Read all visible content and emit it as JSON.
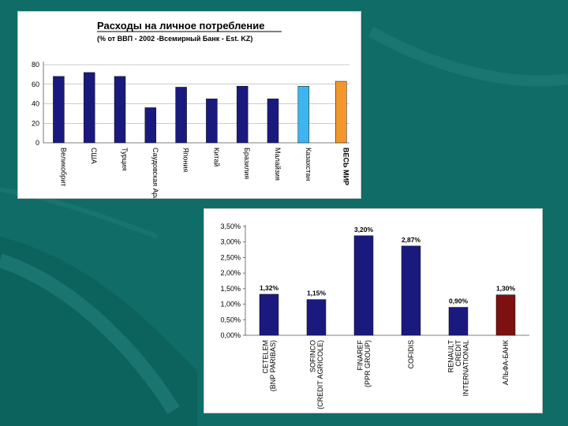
{
  "colors": {
    "background": "#0f6c67",
    "bar_default": "#1a1a7e",
    "bar_kazakhstan": "#3fb5f0",
    "bar_world": "#f5962a",
    "bar_alfa": "#7d1010"
  },
  "chart_data": [
    {
      "type": "bar",
      "title": "Расходы на личное потребление",
      "subtitle": "(% от ВВП - 2002 -Всемирный Банк - Est. KZ)",
      "categories": [
        "Великобрит",
        "США",
        "Турция",
        "Саудовская Аравия",
        "Япония",
        "Китай",
        "Бразилия",
        "Малайзия",
        "Казахстан",
        "ВЕСЬ МИР"
      ],
      "values": [
        68,
        72,
        68,
        36,
        57,
        45,
        58,
        45,
        58,
        63
      ],
      "bar_colors": [
        "#1a1a7e",
        "#1a1a7e",
        "#1a1a7e",
        "#1a1a7e",
        "#1a1a7e",
        "#1a1a7e",
        "#1a1a7e",
        "#1a1a7e",
        "#3fb5f0",
        "#f5962a"
      ],
      "yticks": [
        "0",
        "20",
        "40",
        "60",
        "80"
      ],
      "ylim": [
        0,
        80
      ],
      "grid": true,
      "legend": "none"
    },
    {
      "type": "bar",
      "categories": [
        "CETELEM (BNP PARIBAS)",
        "SOFINCO (CREDIT AGRICOLE)",
        "FINAREF (PPR GROUP)",
        "COFIDIS",
        "RENAULT CREDIT INTERNATIONAL",
        "АЛЬФА-БАНК"
      ],
      "values": [
        1.32,
        1.15,
        3.2,
        2.87,
        0.9,
        1.3
      ],
      "data_labels": [
        "1,32%",
        "1,15%",
        "3,20%",
        "2,87%",
        "0,90%",
        "1,30%"
      ],
      "bar_colors": [
        "#1a1a7e",
        "#1a1a7e",
        "#1a1a7e",
        "#1a1a7e",
        "#1a1a7e",
        "#7d1010"
      ],
      "yticks": [
        "0,00%",
        "0,50%",
        "1,00%",
        "1,50%",
        "2,00%",
        "2,50%",
        "3,00%",
        "3,50%"
      ],
      "ylim": [
        0,
        3.5
      ],
      "grid": false,
      "legend": "none"
    }
  ]
}
